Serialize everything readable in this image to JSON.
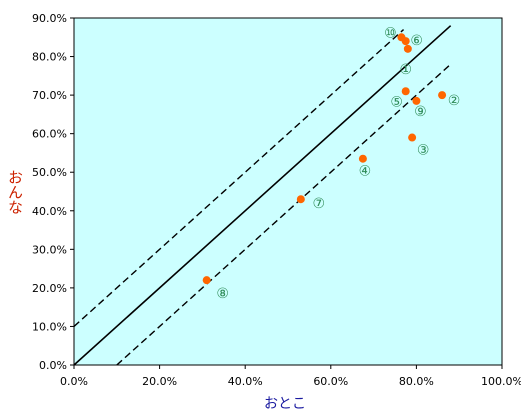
{
  "chart_data": {
    "type": "scatter",
    "xlabel": "おとこ",
    "ylabel": "おんな",
    "xlim": [
      0,
      100
    ],
    "ylim": [
      0,
      90
    ],
    "x_ticks": [
      "0.0%",
      "20.0%",
      "40.0%",
      "60.0%",
      "80.0%",
      "100.0%"
    ],
    "y_ticks": [
      "0.0%",
      "10.0%",
      "20.0%",
      "30.0%",
      "40.0%",
      "50.0%",
      "60.0%",
      "70.0%",
      "80.0%",
      "90.0%"
    ],
    "grid": false,
    "colors": {
      "plot_bg": "#ccffff",
      "point": "#ff6600",
      "label": "#2e8b57",
      "ylabel": "#cc2200",
      "xlabel": "#1a1aa0"
    },
    "points": [
      {
        "label": "①",
        "x": 78.0,
        "y": 82.0
      },
      {
        "label": "②",
        "x": 86.0,
        "y": 70.0
      },
      {
        "label": "③",
        "x": 79.0,
        "y": 59.0
      },
      {
        "label": "④",
        "x": 67.5,
        "y": 53.5
      },
      {
        "label": "⑤",
        "x": 77.5,
        "y": 71.0
      },
      {
        "label": "⑥",
        "x": 77.5,
        "y": 84.0
      },
      {
        "label": "⑦",
        "x": 53.0,
        "y": 43.0
      },
      {
        "label": "⑧",
        "x": 31.0,
        "y": 22.0
      },
      {
        "label": "⑨",
        "x": 80.0,
        "y": 68.5
      },
      {
        "label": "⑩",
        "x": 76.5,
        "y": 85.0
      }
    ],
    "lines": [
      {
        "name": "y = x",
        "style": "solid",
        "from": [
          0,
          0
        ],
        "to": [
          88,
          88
        ]
      },
      {
        "name": "y = x + 10",
        "style": "dashed",
        "from": [
          0,
          10
        ],
        "to": [
          77,
          87
        ]
      },
      {
        "name": "y = x - 10",
        "style": "dashed",
        "from": [
          10,
          0
        ],
        "to": [
          88,
          78
        ]
      }
    ]
  }
}
